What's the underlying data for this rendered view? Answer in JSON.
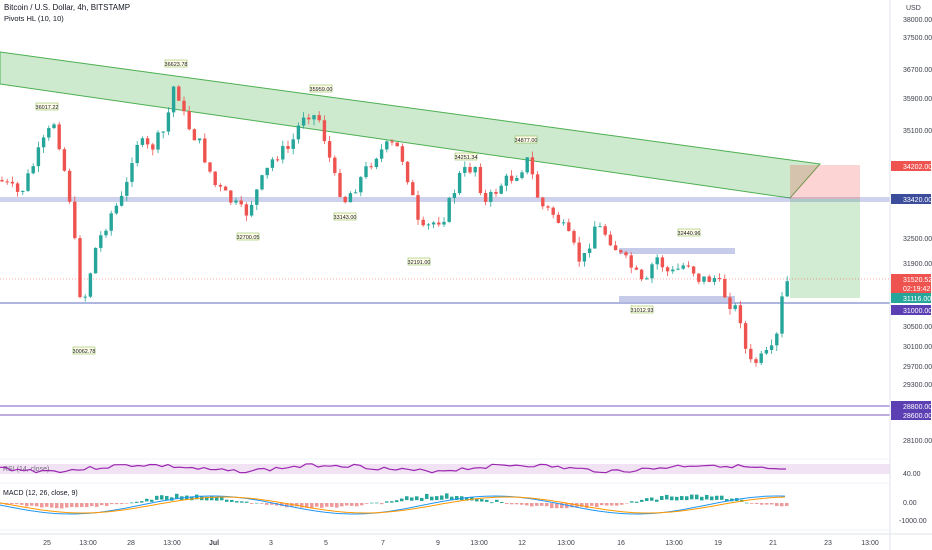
{
  "header": {
    "symbol_title": "Bitcoin / U.S. Dollar, 4h, BITSTAMP",
    "indicator": "Pivots HL (10, 10)"
  },
  "price_axis": {
    "currency": "USD",
    "ticks": [
      "38000.00",
      "37500.00",
      "36700.00",
      "35900.00",
      "35100.00",
      "34200.00",
      "33420.00",
      "32500.00",
      "31900.00",
      "31000.00",
      "30500.00",
      "30100.00",
      "29700.00",
      "29300.00",
      "28800.00",
      "28600.00",
      "28100.00"
    ]
  },
  "price_tags": [
    {
      "label": "34202.00",
      "color": "#ef5350"
    },
    {
      "label": "33420.00",
      "color": "#3c4d9c"
    },
    {
      "label": "31520.52",
      "color": "#ef5350"
    },
    {
      "label": "02:19:42",
      "color": "#ef5350"
    },
    {
      "label": "31116.00",
      "color": "#26a69a"
    },
    {
      "label": "31000.00",
      "color": "#5b3fb3"
    },
    {
      "label": "28800.00",
      "color": "#5b3fb3"
    },
    {
      "label": "28600.00",
      "color": "#5b3fb3"
    }
  ],
  "time_axis": [
    "25",
    "13:00",
    "28",
    "13:00",
    "Jul",
    "3",
    "5",
    "7",
    "9",
    "13:00",
    "12",
    "13:00",
    "16",
    "13:00",
    "19",
    "21",
    "23",
    "13:00"
  ],
  "pivots": [
    {
      "label": "36017.22"
    },
    {
      "label": "36623.78"
    },
    {
      "label": "35959.00"
    },
    {
      "label": "34251.34"
    },
    {
      "label": "34877.00"
    },
    {
      "label": "32440.96"
    },
    {
      "label": "30062.78"
    },
    {
      "label": "32700.05"
    },
    {
      "label": "33143.00"
    },
    {
      "label": "32191.00"
    },
    {
      "label": "31012.93"
    }
  ],
  "rsi": {
    "label": "RSI (14, close)",
    "ticks": [
      "40.00"
    ]
  },
  "macd": {
    "label": "MACD (12, 26, close, 9)",
    "ticks": [
      "0.00",
      "-1000.00"
    ]
  },
  "colors": {
    "up": "#26a69a",
    "down": "#ef5350",
    "channel": "#4caf50",
    "level": "#3f51b5"
  }
}
